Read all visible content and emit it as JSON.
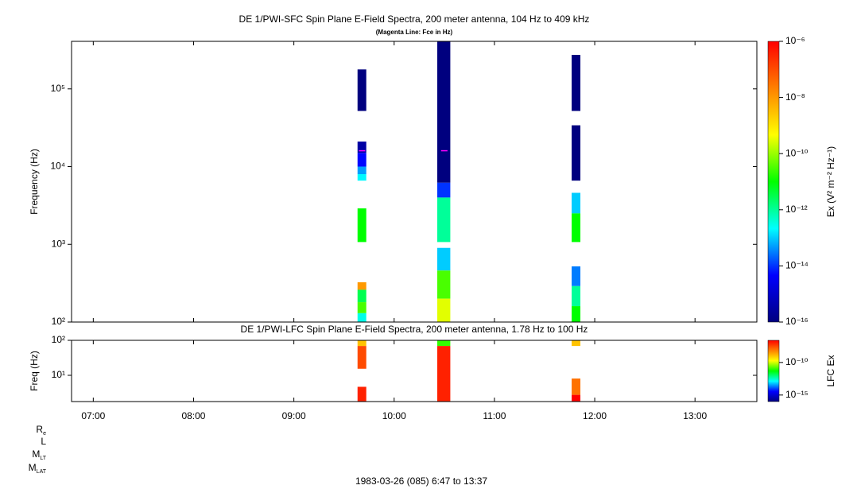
{
  "chart_data": [
    {
      "type": "spectrogram",
      "title": "DE 1/PWI-SFC  Spin Plane E-Field Spectra, 200 meter antenna, 104 Hz to 409 kHz",
      "subtitle": "(Magenta Line: Fce in Hz)",
      "ylabel": "Frequency (Hz)",
      "xlim": [
        6.7833,
        13.6167
      ],
      "xticks": [
        7,
        8,
        9,
        10,
        11,
        12,
        13
      ],
      "yscale": "log",
      "ylim": [
        100,
        409000
      ],
      "yticks": [
        {
          "value": 100,
          "label": "10²"
        },
        {
          "value": 1000,
          "label": "10³"
        },
        {
          "value": 10000,
          "label": "10⁴"
        },
        {
          "value": 100000,
          "label": "10⁵"
        }
      ],
      "colormap": [
        "#00007f",
        "#0000ff",
        "#00ffff",
        "#00ff00",
        "#ffff00",
        "#ff8000",
        "#ff0000"
      ],
      "colorbar": {
        "label": "Ex (V² m⁻² Hz⁻¹)",
        "clim": [
          1e-16,
          1e-06
        ],
        "ticks": [
          {
            "value": 1e-16,
            "label": "10⁻¹⁶"
          },
          {
            "value": 1e-14,
            "label": "10⁻¹⁴"
          },
          {
            "value": 1e-12,
            "label": "10⁻¹²"
          },
          {
            "value": 1e-10,
            "label": "10⁻¹⁰"
          },
          {
            "value": 1e-08,
            "label": "10⁻⁸"
          },
          {
            "value": 1e-06,
            "label": "10⁻⁶"
          }
        ]
      },
      "columns": [
        {
          "x": [
            9.635,
            9.722
          ],
          "cells": [
            {
              "f": [
                52000,
                178000
              ],
              "value": 1e-16
            },
            {
              "f": [
                15000,
                21000
              ],
              "value": 3e-16
            },
            {
              "f": [
                10000,
                15000
              ],
              "value": 5e-15
            },
            {
              "f": [
                8000,
                10000
              ],
              "value": 5e-14
            },
            {
              "f": [
                6600,
                8000
              ],
              "value": 2e-13
            },
            {
              "f": [
                1070,
                2900
              ],
              "value": 1e-11
            },
            {
              "f": [
                260,
                325
              ],
              "value": 1e-08
            },
            {
              "f": [
                180,
                260
              ],
              "value": 3e-12
            },
            {
              "f": [
                130,
                180
              ],
              "value": 3e-11
            },
            {
              "f": [
                100,
                130
              ],
              "value": 3e-13
            }
          ]
        },
        {
          "x": [
            10.43,
            10.56
          ],
          "cells": [
            {
              "f": [
                6200,
                409000
              ],
              "value": 1e-16
            },
            {
              "f": [
                4000,
                6200
              ],
              "value": 1e-14
            },
            {
              "f": [
                1070,
                4000
              ],
              "value": 1e-12
            },
            {
              "f": [
                460,
                900
              ],
              "value": 1e-13
            },
            {
              "f": [
                200,
                460
              ],
              "value": 3e-11
            },
            {
              "f": [
                100,
                200
              ],
              "value": 3e-10
            }
          ]
        },
        {
          "x": [
            11.77,
            11.857
          ],
          "cells": [
            {
              "f": [
                52000,
                274000
              ],
              "value": 1e-16
            },
            {
              "f": [
                6600,
                34000
              ],
              "value": 1e-16
            },
            {
              "f": [
                2500,
                4600
              ],
              "value": 1e-13
            },
            {
              "f": [
                1070,
                2500
              ],
              "value": 1e-11
            },
            {
              "f": [
                290,
                520
              ],
              "value": 3e-14
            },
            {
              "f": [
                160,
                290
              ],
              "value": 1e-12
            },
            {
              "f": [
                100,
                160
              ],
              "value": 1e-11
            }
          ]
        }
      ],
      "fce": {
        "color": "#ff00ff",
        "x": [
          9.68,
          10.5
        ],
        "values": [
          16000,
          16000
        ]
      }
    },
    {
      "type": "spectrogram",
      "title": "DE 1/PWI-LFC  Spin Plane E-Field Spectra, 200 meter antenna, 1.78 Hz to 100 Hz",
      "ylabel": "Freq (Hz)",
      "xlim": [
        6.7833,
        13.6167
      ],
      "xticks": [
        {
          "value": 7,
          "label": "07:00"
        },
        {
          "value": 8,
          "label": "08:00"
        },
        {
          "value": 9,
          "label": "09:00"
        },
        {
          "value": 10,
          "label": "10:00"
        },
        {
          "value": 11,
          "label": "11:00"
        },
        {
          "value": 12,
          "label": "12:00"
        },
        {
          "value": 13,
          "label": "13:00"
        }
      ],
      "yscale": "log",
      "ylim": [
        1.78,
        100
      ],
      "yticks": [
        {
          "value": 10,
          "label": "10¹"
        },
        {
          "value": 100,
          "label": "10²"
        }
      ],
      "colormap": [
        "#00007f",
        "#0000ff",
        "#00ffff",
        "#00ff00",
        "#ffff00",
        "#ff8000",
        "#ff0000"
      ],
      "colorbar": {
        "label": "LFC Ex",
        "clim": [
          1e-16,
          2.5e-07
        ],
        "ticks": [
          {
            "value": 1e-15,
            "label": "10⁻¹⁵"
          },
          {
            "value": 1e-10,
            "label": "10⁻¹⁰"
          }
        ]
      },
      "columns": [
        {
          "x": [
            9.635,
            9.722
          ],
          "cells": [
            {
              "f": [
                68.9,
                100
              ],
              "value": 1e-09
            },
            {
              "f": [
                15.4,
                68.9
              ],
              "value": 3e-08
            },
            {
              "f": [
                1.78,
                4.7
              ],
              "value": 1e-07
            }
          ]
        },
        {
          "x": [
            10.43,
            10.56
          ],
          "cells": [
            {
              "f": [
                68.9,
                100
              ],
              "value": 1e-11
            },
            {
              "f": [
                1.78,
                68.9
              ],
              "value": 1e-07
            }
          ]
        },
        {
          "x": [
            11.77,
            11.857
          ],
          "cells": [
            {
              "f": [
                68.9,
                100
              ],
              "value": 1e-09
            },
            {
              "f": [
                2.76,
                8.1
              ],
              "value": 1e-08
            },
            {
              "f": [
                1.78,
                2.76
              ],
              "value": 2.5e-07
            }
          ]
        }
      ],
      "ephemeris_labels": [
        {
          "text": "R",
          "sub": "e"
        },
        {
          "text": "L"
        },
        {
          "text": "M",
          "sub": "LT"
        },
        {
          "text": "M",
          "sub": "LAT"
        }
      ],
      "caption": "1983-03-26 (085) 6:47 to 13:37"
    }
  ]
}
